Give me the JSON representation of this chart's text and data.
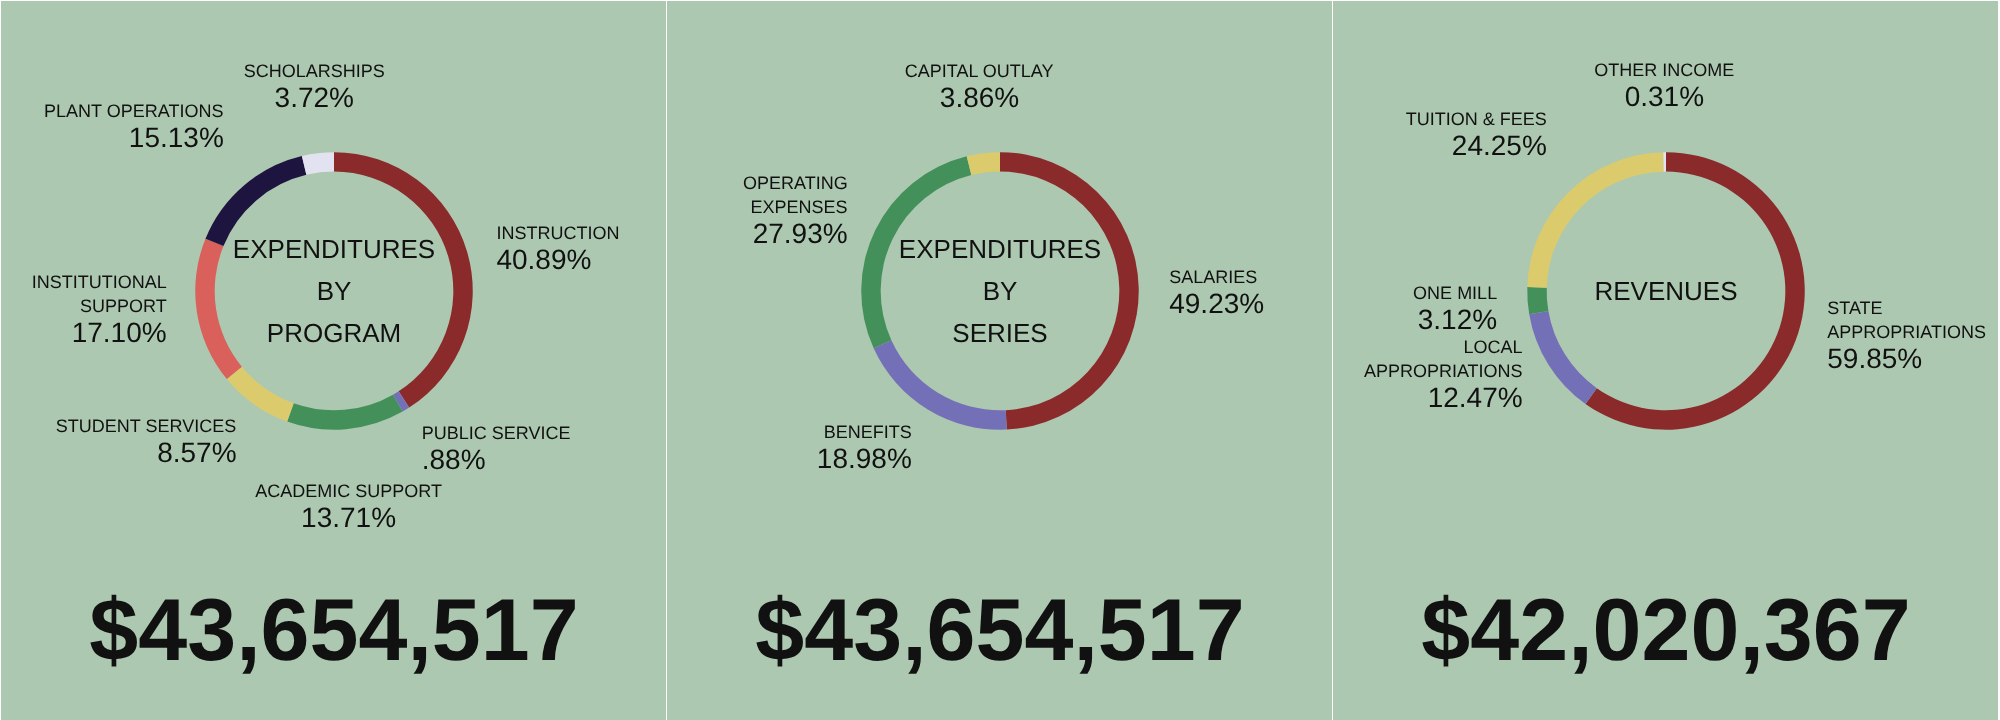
{
  "chart_data": [
    {
      "type": "donut",
      "title": "EXPENDITURES BY PROGRAM",
      "categories": [
        "INSTRUCTION",
        "PUBLIC SERVICE",
        "ACADEMIC SUPPORT",
        "STUDENT SERVICES",
        "INSTITUTIONAL SUPPORT",
        "PLANT OPERATIONS",
        "SCHOLARSHIPS"
      ],
      "values": [
        40.89,
        0.88,
        13.71,
        8.57,
        17.1,
        15.13,
        3.72
      ],
      "value_labels": [
        "40.89%",
        ".88%",
        "13.71%",
        "8.57%",
        "17.10%",
        "15.13%",
        "3.72%"
      ],
      "colors": [
        "#8b2a2b",
        "#7470b8",
        "#43905a",
        "#dccb6c",
        "#d9605b",
        "#1d1540",
        "#e2e2f0"
      ],
      "annotations": [
        "$43,654,517"
      ]
    },
    {
      "type": "donut",
      "title": "EXPENDITURES BY SERIES",
      "categories": [
        "SALARIES",
        "BENEFITS",
        "OPERATING EXPENSES",
        "CAPITAL OUTLAY"
      ],
      "values": [
        49.23,
        18.98,
        27.93,
        3.86
      ],
      "value_labels": [
        "49.23%",
        "18.98%",
        "27.93%",
        "3.86%"
      ],
      "colors": [
        "#8b2a2b",
        "#7470b8",
        "#43905a",
        "#dccb6c"
      ],
      "annotations": [
        "$43,654,517"
      ]
    },
    {
      "type": "donut",
      "title": "REVENUES",
      "categories": [
        "STATE APPROPRIATIONS",
        "LOCAL APPROPRIATIONS",
        "ONE MILL",
        "TUITION & FEES",
        "OTHER INCOME"
      ],
      "values": [
        59.85,
        12.47,
        3.12,
        24.25,
        0.31
      ],
      "value_labels": [
        "59.85%",
        "12.47%",
        "3.12%",
        "24.25%",
        "0.31%"
      ],
      "colors": [
        "#8b2a2b",
        "#7470b8",
        "#43905a",
        "#dccb6c",
        "#e2e2f0"
      ],
      "annotations": [
        "$42,020,367"
      ]
    }
  ]
}
